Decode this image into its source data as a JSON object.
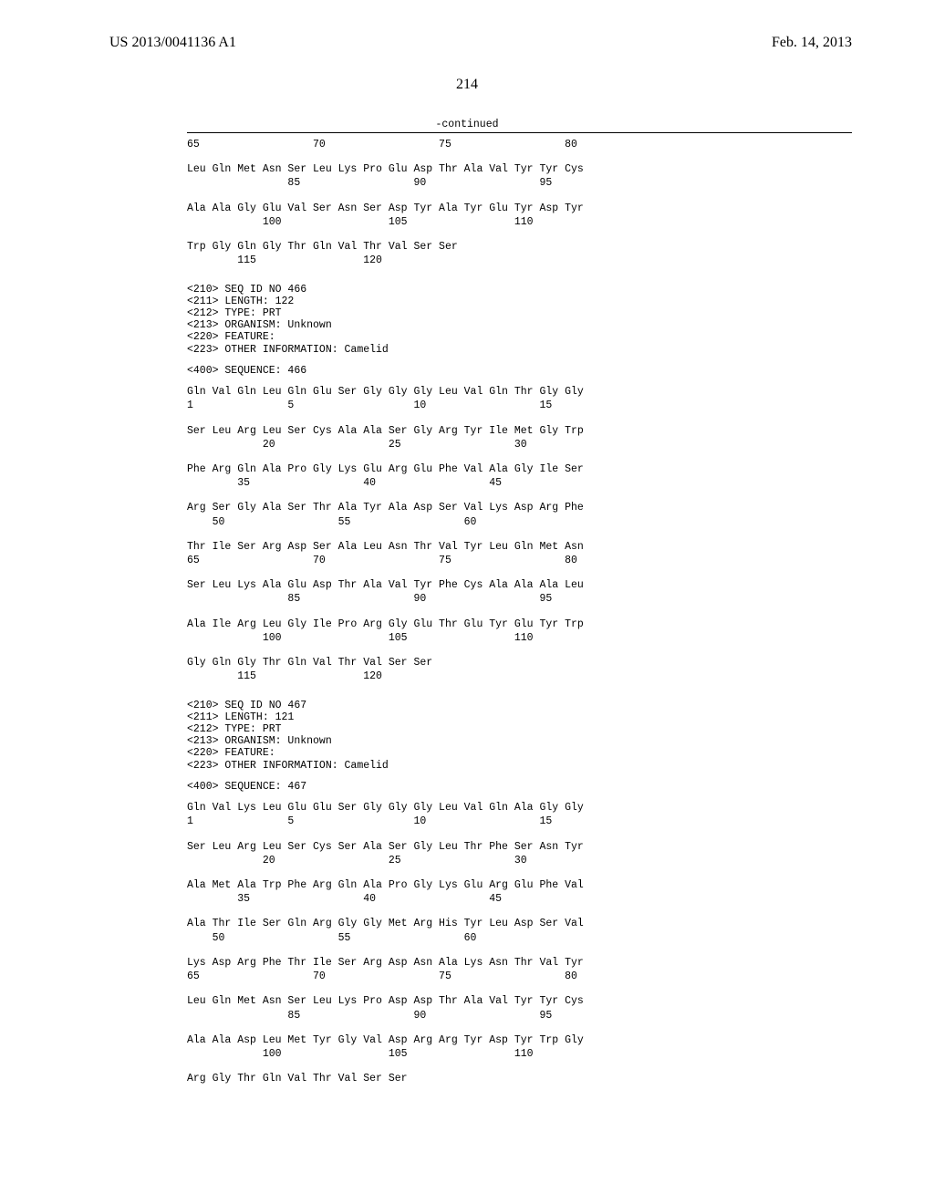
{
  "header": {
    "pub_number": "US 2013/0041136 A1",
    "pub_date": "Feb. 14, 2013"
  },
  "page_number": "214",
  "continued_label": "-continued",
  "blocks": [
    {
      "type": "seq_pair",
      "aa": "65                  70                  75                  80",
      "num": ""
    },
    {
      "type": "seq_pair",
      "aa": "Leu Gln Met Asn Ser Leu Lys Pro Glu Asp Thr Ala Val Tyr Tyr Cys",
      "num": "                85                  90                  95"
    },
    {
      "type": "seq_pair",
      "aa": "Ala Ala Gly Glu Val Ser Asn Ser Asp Tyr Ala Tyr Glu Tyr Asp Tyr",
      "num": "            100                 105                 110"
    },
    {
      "type": "seq_pair",
      "aa": "Trp Gly Gln Gly Thr Gln Val Thr Val Ser Ser",
      "num": "        115                 120"
    },
    {
      "type": "meta",
      "lines": [
        "<210> SEQ ID NO 466",
        "<211> LENGTH: 122",
        "<212> TYPE: PRT",
        "<213> ORGANISM: Unknown",
        "<220> FEATURE:",
        "<223> OTHER INFORMATION: Camelid"
      ]
    },
    {
      "type": "single",
      "text": "<400> SEQUENCE: 466"
    },
    {
      "type": "seq_pair",
      "aa": "Gln Val Gln Leu Gln Glu Ser Gly Gly Gly Leu Val Gln Thr Gly Gly",
      "num": "1               5                   10                  15"
    },
    {
      "type": "seq_pair",
      "aa": "Ser Leu Arg Leu Ser Cys Ala Ala Ser Gly Arg Tyr Ile Met Gly Trp",
      "num": "            20                  25                  30"
    },
    {
      "type": "seq_pair",
      "aa": "Phe Arg Gln Ala Pro Gly Lys Glu Arg Glu Phe Val Ala Gly Ile Ser",
      "num": "        35                  40                  45"
    },
    {
      "type": "seq_pair",
      "aa": "Arg Ser Gly Ala Ser Thr Ala Tyr Ala Asp Ser Val Lys Asp Arg Phe",
      "num": "    50                  55                  60"
    },
    {
      "type": "seq_pair",
      "aa": "Thr Ile Ser Arg Asp Ser Ala Leu Asn Thr Val Tyr Leu Gln Met Asn",
      "num": "65                  70                  75                  80"
    },
    {
      "type": "seq_pair",
      "aa": "Ser Leu Lys Ala Glu Asp Thr Ala Val Tyr Phe Cys Ala Ala Ala Leu",
      "num": "                85                  90                  95"
    },
    {
      "type": "seq_pair",
      "aa": "Ala Ile Arg Leu Gly Ile Pro Arg Gly Glu Thr Glu Tyr Glu Tyr Trp",
      "num": "            100                 105                 110"
    },
    {
      "type": "seq_pair",
      "aa": "Gly Gln Gly Thr Gln Val Thr Val Ser Ser",
      "num": "        115                 120"
    },
    {
      "type": "meta",
      "lines": [
        "<210> SEQ ID NO 467",
        "<211> LENGTH: 121",
        "<212> TYPE: PRT",
        "<213> ORGANISM: Unknown",
        "<220> FEATURE:",
        "<223> OTHER INFORMATION: Camelid"
      ]
    },
    {
      "type": "single",
      "text": "<400> SEQUENCE: 467"
    },
    {
      "type": "seq_pair",
      "aa": "Gln Val Lys Leu Glu Glu Ser Gly Gly Gly Leu Val Gln Ala Gly Gly",
      "num": "1               5                   10                  15"
    },
    {
      "type": "seq_pair",
      "aa": "Ser Leu Arg Leu Ser Cys Ser Ala Ser Gly Leu Thr Phe Ser Asn Tyr",
      "num": "            20                  25                  30"
    },
    {
      "type": "seq_pair",
      "aa": "Ala Met Ala Trp Phe Arg Gln Ala Pro Gly Lys Glu Arg Glu Phe Val",
      "num": "        35                  40                  45"
    },
    {
      "type": "seq_pair",
      "aa": "Ala Thr Ile Ser Gln Arg Gly Gly Met Arg His Tyr Leu Asp Ser Val",
      "num": "    50                  55                  60"
    },
    {
      "type": "seq_pair",
      "aa": "Lys Asp Arg Phe Thr Ile Ser Arg Asp Asn Ala Lys Asn Thr Val Tyr",
      "num": "65                  70                  75                  80"
    },
    {
      "type": "seq_pair",
      "aa": "Leu Gln Met Asn Ser Leu Lys Pro Asp Asp Thr Ala Val Tyr Tyr Cys",
      "num": "                85                  90                  95"
    },
    {
      "type": "seq_pair",
      "aa": "Ala Ala Asp Leu Met Tyr Gly Val Asp Arg Arg Tyr Asp Tyr Trp Gly",
      "num": "            100                 105                 110"
    },
    {
      "type": "seq_pair_last",
      "aa": "Arg Gly Thr Gln Val Thr Val Ser Ser",
      "num": ""
    }
  ]
}
